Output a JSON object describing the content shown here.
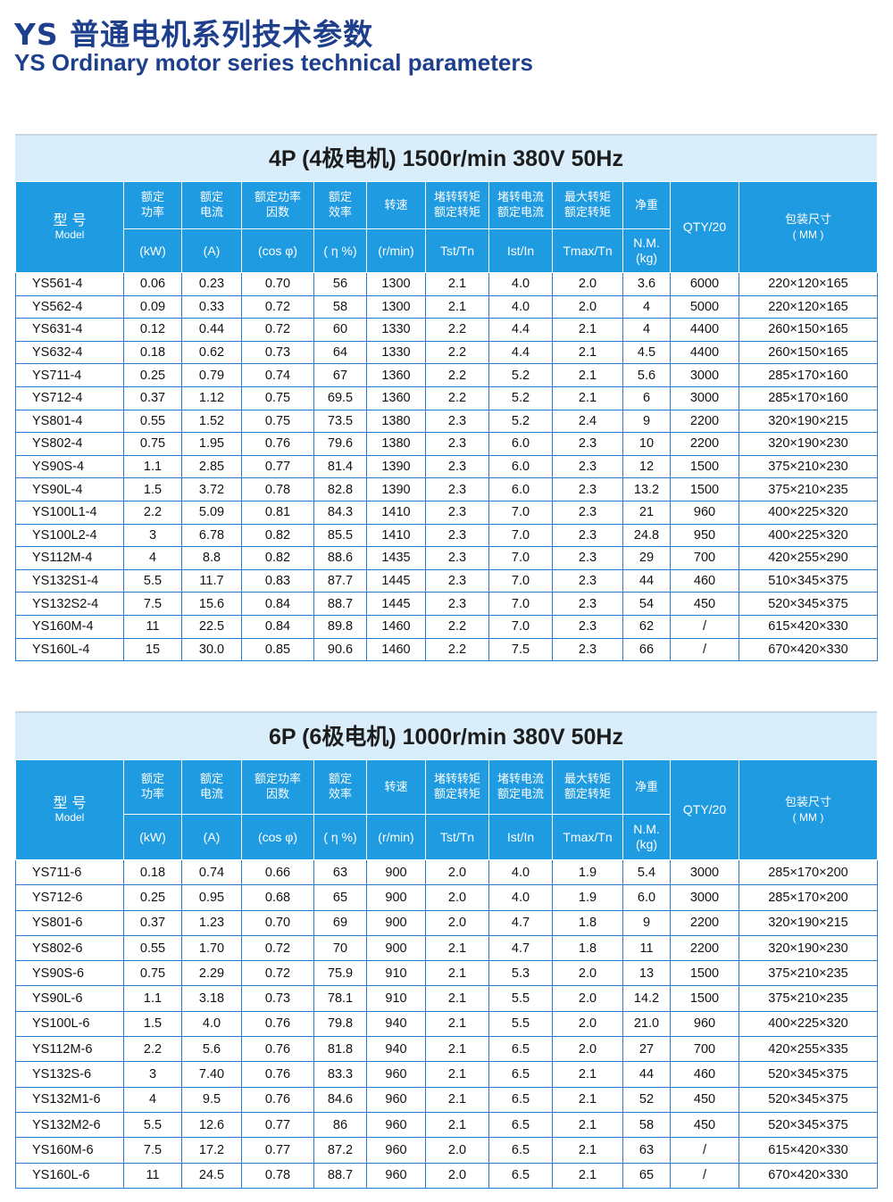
{
  "title_cn": "YS 普通电机系列技术参数",
  "title_en": "YS Ordinary motor series technical parameters",
  "colors": {
    "title": "#1e3f8c",
    "header_bg": "#1f9be2",
    "band_bg": "#d9eefa",
    "border": "#2a7ccc"
  },
  "header": {
    "model_cn": "型 号",
    "model_en": "Model",
    "cols_cn": [
      "额定功率",
      "额定电流",
      "额定功率因数",
      "额定效率",
      "转速",
      "堵转转矩额定转矩",
      "堵转电流额定电流",
      "最大转矩额定转矩",
      "净重"
    ],
    "cols_unit": [
      "(kW)",
      "(A)",
      "(cos φ)",
      "( η %)",
      "(r/min)",
      "Tst/Tn",
      "Ist/In",
      "Tmax/Tn",
      "N.M. (kg)"
    ],
    "qty": "QTY/20",
    "pack_cn": "包装尺寸",
    "pack_unit": "( MM )"
  },
  "tables": [
    {
      "title": "4P (4极电机) 1500r/min 380V 50Hz",
      "rows": [
        [
          "YS561-4",
          "0.06",
          "0.23",
          "0.70",
          "56",
          "1300",
          "2.1",
          "4.0",
          "2.0",
          "3.6",
          "6000",
          "220×120×165"
        ],
        [
          "YS562-4",
          "0.09",
          "0.33",
          "0.72",
          "58",
          "1300",
          "2.1",
          "4.0",
          "2.0",
          "4",
          "5000",
          "220×120×165"
        ],
        [
          "YS631-4",
          "0.12",
          "0.44",
          "0.72",
          "60",
          "1330",
          "2.2",
          "4.4",
          "2.1",
          "4",
          "4400",
          "260×150×165"
        ],
        [
          "YS632-4",
          "0.18",
          "0.62",
          "0.73",
          "64",
          "1330",
          "2.2",
          "4.4",
          "2.1",
          "4.5",
          "4400",
          "260×150×165"
        ],
        [
          "YS711-4",
          "0.25",
          "0.79",
          "0.74",
          "67",
          "1360",
          "2.2",
          "5.2",
          "2.1",
          "5.6",
          "3000",
          "285×170×160"
        ],
        [
          "YS712-4",
          "0.37",
          "1.12",
          "0.75",
          "69.5",
          "1360",
          "2.2",
          "5.2",
          "2.1",
          "6",
          "3000",
          "285×170×160"
        ],
        [
          "YS801-4",
          "0.55",
          "1.52",
          "0.75",
          "73.5",
          "1380",
          "2.3",
          "5.2",
          "2.4",
          "9",
          "2200",
          "320×190×215"
        ],
        [
          "YS802-4",
          "0.75",
          "1.95",
          "0.76",
          "79.6",
          "1380",
          "2.3",
          "6.0",
          "2.3",
          "10",
          "2200",
          "320×190×230"
        ],
        [
          "YS90S-4",
          "1.1",
          "2.85",
          "0.77",
          "81.4",
          "1390",
          "2.3",
          "6.0",
          "2.3",
          "12",
          "1500",
          "375×210×230"
        ],
        [
          "YS90L-4",
          "1.5",
          "3.72",
          "0.78",
          "82.8",
          "1390",
          "2.3",
          "6.0",
          "2.3",
          "13.2",
          "1500",
          "375×210×235"
        ],
        [
          "YS100L1-4",
          "2.2",
          "5.09",
          "0.81",
          "84.3",
          "1410",
          "2.3",
          "7.0",
          "2.3",
          "21",
          "960",
          "400×225×320"
        ],
        [
          "YS100L2-4",
          "3",
          "6.78",
          "0.82",
          "85.5",
          "1410",
          "2.3",
          "7.0",
          "2.3",
          "24.8",
          "950",
          "400×225×320"
        ],
        [
          "YS112M-4",
          "4",
          "8.8",
          "0.82",
          "88.6",
          "1435",
          "2.3",
          "7.0",
          "2.3",
          "29",
          "700",
          "420×255×290"
        ],
        [
          "YS132S1-4",
          "5.5",
          "11.7",
          "0.83",
          "87.7",
          "1445",
          "2.3",
          "7.0",
          "2.3",
          "44",
          "460",
          "510×345×375"
        ],
        [
          "YS132S2-4",
          "7.5",
          "15.6",
          "0.84",
          "88.7",
          "1445",
          "2.3",
          "7.0",
          "2.3",
          "54",
          "450",
          "520×345×375"
        ],
        [
          "YS160M-4",
          "11",
          "22.5",
          "0.84",
          "89.8",
          "1460",
          "2.2",
          "7.0",
          "2.3",
          "62",
          "/",
          "615×420×330"
        ],
        [
          "YS160L-4",
          "15",
          "30.0",
          "0.85",
          "90.6",
          "1460",
          "2.2",
          "7.5",
          "2.3",
          "66",
          "/",
          "670×420×330"
        ]
      ]
    },
    {
      "title": "6P (6极电机) 1000r/min 380V 50Hz",
      "rows": [
        [
          "YS711-6",
          "0.18",
          "0.74",
          "0.66",
          "63",
          "900",
          "2.0",
          "4.0",
          "1.9",
          "5.4",
          "3000",
          "285×170×200"
        ],
        [
          "YS712-6",
          "0.25",
          "0.95",
          "0.68",
          "65",
          "900",
          "2.0",
          "4.0",
          "1.9",
          "6.0",
          "3000",
          "285×170×200"
        ],
        [
          "YS801-6",
          "0.37",
          "1.23",
          "0.70",
          "69",
          "900",
          "2.0",
          "4.7",
          "1.8",
          "9",
          "2200",
          "320×190×215"
        ],
        [
          "YS802-6",
          "0.55",
          "1.70",
          "0.72",
          "70",
          "900",
          "2.1",
          "4.7",
          "1.8",
          "11",
          "2200",
          "320×190×230"
        ],
        [
          "YS90S-6",
          "0.75",
          "2.29",
          "0.72",
          "75.9",
          "910",
          "2.1",
          "5.3",
          "2.0",
          "13",
          "1500",
          "375×210×235"
        ],
        [
          "YS90L-6",
          "1.1",
          "3.18",
          "0.73",
          "78.1",
          "910",
          "2.1",
          "5.5",
          "2.0",
          "14.2",
          "1500",
          "375×210×235"
        ],
        [
          "YS100L-6",
          "1.5",
          "4.0",
          "0.76",
          "79.8",
          "940",
          "2.1",
          "5.5",
          "2.0",
          "21.0",
          "960",
          "400×225×320"
        ],
        [
          "YS112M-6",
          "2.2",
          "5.6",
          "0.76",
          "81.8",
          "940",
          "2.1",
          "6.5",
          "2.0",
          "27",
          "700",
          "420×255×335"
        ],
        [
          "YS132S-6",
          "3",
          "7.40",
          "0.76",
          "83.3",
          "960",
          "2.1",
          "6.5",
          "2.1",
          "44",
          "460",
          "520×345×375"
        ],
        [
          "YS132M1-6",
          "4",
          "9.5",
          "0.76",
          "84.6",
          "960",
          "2.1",
          "6.5",
          "2.1",
          "52",
          "450",
          "520×345×375"
        ],
        [
          "YS132M2-6",
          "5.5",
          "12.6",
          "0.77",
          "86",
          "960",
          "2.1",
          "6.5",
          "2.1",
          "58",
          "450",
          "520×345×375"
        ],
        [
          "YS160M-6",
          "7.5",
          "17.2",
          "0.77",
          "87.2",
          "960",
          "2.0",
          "6.5",
          "2.1",
          "63",
          "/",
          "615×420×330"
        ],
        [
          "YS160L-6",
          "11",
          "24.5",
          "0.78",
          "88.7",
          "960",
          "2.0",
          "6.5",
          "2.1",
          "65",
          "/",
          "670×420×330"
        ]
      ]
    }
  ]
}
